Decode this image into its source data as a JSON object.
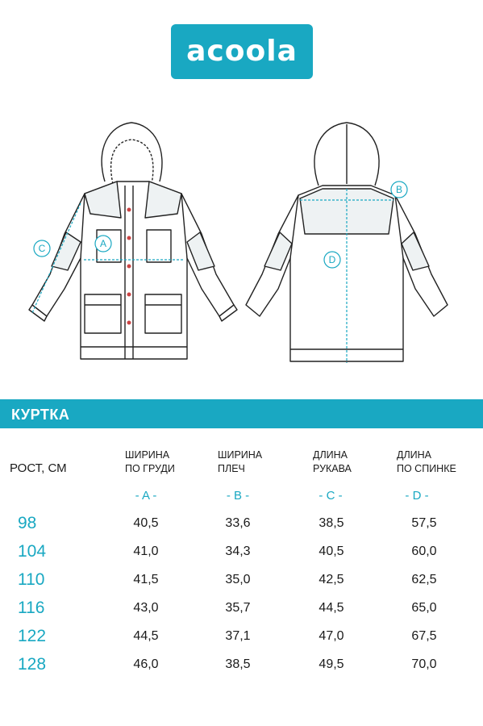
{
  "brand": {
    "logo_text": "acoola",
    "accent_color": "#19a8c2"
  },
  "drawing": {
    "front_view": "jacket-front-sketch",
    "back_view": "jacket-back-sketch",
    "markers": [
      "A",
      "B",
      "C",
      "D"
    ]
  },
  "section_title": "КУРТКА",
  "table": {
    "row_header": "РОСТ, СМ",
    "columns": [
      {
        "line1": "ШИРИНА",
        "line2": "ПО ГРУДИ",
        "code": "- A -"
      },
      {
        "line1": "ШИРИНА",
        "line2": "ПЛЕЧ",
        "code": "- B -"
      },
      {
        "line1": "ДЛИНА",
        "line2": "РУКАВА",
        "code": "- C -"
      },
      {
        "line1": "ДЛИНА",
        "line2": "ПО СПИНКЕ",
        "code": "- D -"
      }
    ],
    "rows": [
      {
        "height": "98",
        "values": [
          "40,5",
          "33,6",
          "38,5",
          "57,5"
        ]
      },
      {
        "height": "104",
        "values": [
          "41,0",
          "34,3",
          "40,5",
          "60,0"
        ]
      },
      {
        "height": "110",
        "values": [
          "41,5",
          "35,0",
          "42,5",
          "62,5"
        ]
      },
      {
        "height": "116",
        "values": [
          "43,0",
          "35,7",
          "44,5",
          "65,0"
        ]
      },
      {
        "height": "122",
        "values": [
          "44,5",
          "37,1",
          "47,0",
          "67,5"
        ]
      },
      {
        "height": "128",
        "values": [
          "46,0",
          "38,5",
          "49,5",
          "70,0"
        ]
      }
    ]
  }
}
